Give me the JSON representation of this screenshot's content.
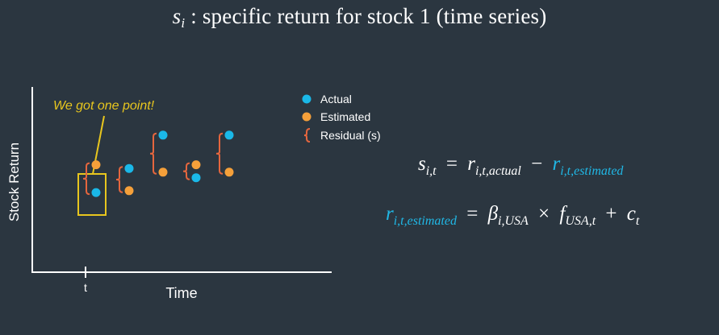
{
  "title": {
    "var": "s",
    "sub": "i",
    "rest": ": specific return for stock 1 (time series)"
  },
  "colors": {
    "background": "#2b3640",
    "actual": "#1ab8e8",
    "estimated": "#f5a03a",
    "residual": "#e5663e",
    "highlight": "#e8c61e",
    "formula_blue": "#20b8e6"
  },
  "annotation": "We got one point!",
  "chart_data": {
    "type": "scatter",
    "title": "",
    "xlabel": "Time",
    "ylabel": "Stock Return",
    "x_ticks": [
      "t"
    ],
    "legend_position": "top-right",
    "legend": [
      {
        "label": "Actual",
        "marker": "dot",
        "color": "#1ab8e8"
      },
      {
        "label": "Estimated",
        "marker": "dot",
        "color": "#f5a03a"
      },
      {
        "label": "Residual (s)",
        "marker": "brace",
        "color": "#e5663e"
      }
    ],
    "x": [
      1,
      2,
      3,
      4,
      5
    ],
    "ylim": [
      0,
      10
    ],
    "series": [
      {
        "name": "Actual",
        "values": [
          4.3,
          5.6,
          7.4,
          5.1,
          7.4
        ]
      },
      {
        "name": "Estimated",
        "values": [
          5.8,
          4.4,
          5.4,
          5.8,
          5.4
        ]
      }
    ],
    "highlighted_point_index": 0
  },
  "equations": {
    "eq1": {
      "lhs_var": "s",
      "lhs_sub": "i,t",
      "equals": "=",
      "term1_var": "r",
      "term1_sub": "i,t,actual",
      "minus": "−",
      "term2_var": "r",
      "term2_sub": "i,t,estimated"
    },
    "eq2": {
      "lhs_var": "r",
      "lhs_sub": "i,t,estimated",
      "equals": "=",
      "beta": "β",
      "beta_sub": "i,USA",
      "times": "×",
      "f": "f",
      "f_sub": "USA,t",
      "plus": "+",
      "c": "c",
      "c_sub": "t"
    }
  }
}
